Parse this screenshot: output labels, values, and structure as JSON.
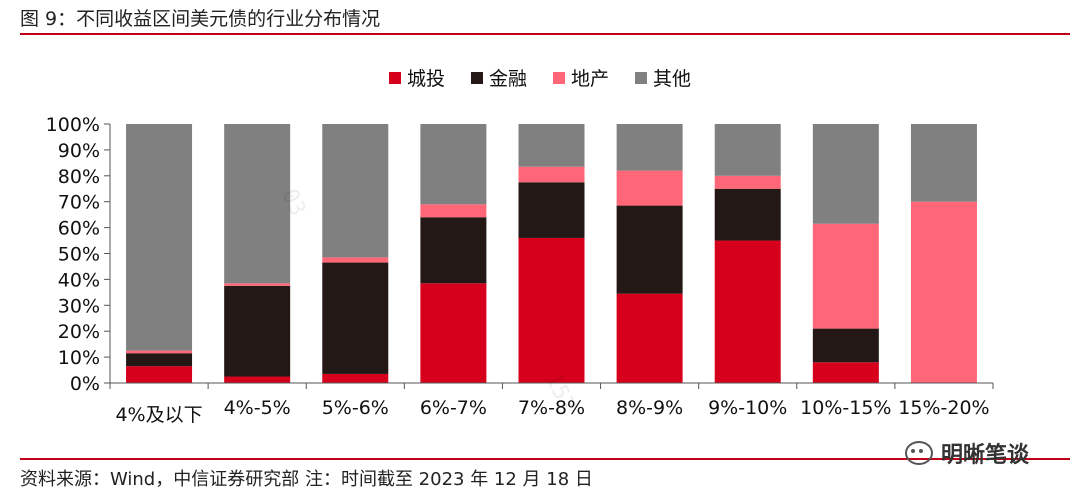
{
  "figure_title": "图 9：不同收益区间美元债的行业分布情况",
  "source_note": "资料来源：Wind，中信证券研究部 注：时间截至 2023 年 12 月 18 日",
  "brand": {
    "name": "明晰笔谈",
    "icon": "wechat-icon"
  },
  "chart_data": {
    "type": "bar",
    "stacked": true,
    "title": "",
    "xlabel": "",
    "ylabel": "",
    "ylim": [
      0,
      100
    ],
    "y_ticks": [
      "0%",
      "10%",
      "20%",
      "30%",
      "40%",
      "50%",
      "60%",
      "70%",
      "80%",
      "90%",
      "100%"
    ],
    "legend_position": "top-center",
    "grid": false,
    "categories": [
      "4%及以下",
      "4%-5%",
      "5%-6%",
      "6%-7%",
      "7%-8%",
      "8%-9%",
      "9%-10%",
      "10%-15%",
      "15%-20%"
    ],
    "series": [
      {
        "name": "城投",
        "color": "#d6001c",
        "values": [
          6.5,
          2.5,
          3.5,
          38.5,
          56,
          34.5,
          55,
          8,
          0
        ]
      },
      {
        "name": "金融",
        "color": "#231815",
        "values": [
          5,
          35,
          43,
          25.5,
          21.5,
          34,
          20,
          13,
          0
        ]
      },
      {
        "name": "地产",
        "color": "#ff6677",
        "values": [
          1,
          1,
          2,
          5,
          6,
          13.5,
          5,
          40.5,
          70
        ]
      },
      {
        "name": "其他",
        "color": "#808080",
        "values": [
          87.5,
          61.5,
          51.5,
          31,
          16.5,
          18,
          20,
          38.5,
          30
        ]
      }
    ]
  }
}
